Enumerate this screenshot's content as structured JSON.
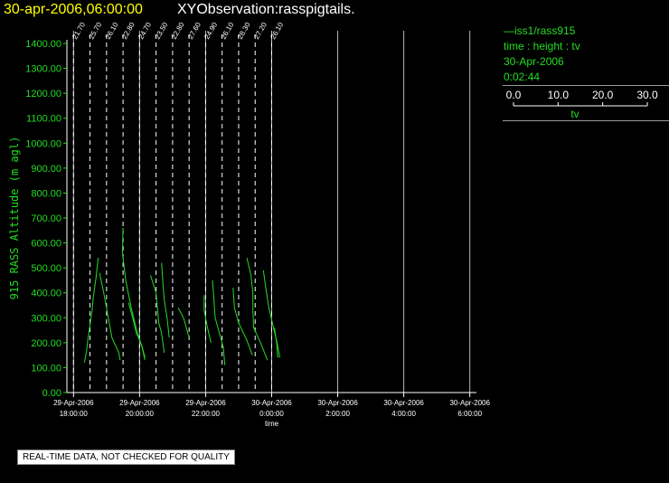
{
  "header": {
    "date_time": "30-apr-2006,06:00:00",
    "title": "XYObservation:rasspigtails."
  },
  "legend": {
    "station": "iss1/rass915",
    "axes": "time : height : tv",
    "date": "30-Apr-2006",
    "time": "0:02:44",
    "scale_ticks": [
      "0.0",
      "10.0",
      "20.0",
      "30.0"
    ],
    "scale_label": "tv"
  },
  "quality_note": "REAL-TIME DATA, NOT CHECKED FOR QUALITY",
  "colors": {
    "trace": "#22dd22",
    "grid": "#ffffff",
    "background": "#000000",
    "title_date": "#ffff00"
  },
  "chart_data": {
    "type": "line",
    "ylabel": "915 RASS Altitude (m agl)",
    "xlabel": "time",
    "ylim": [
      0,
      1400
    ],
    "y_ticks": [
      "0.00",
      "100.00",
      "200.00",
      "300.00",
      "400.00",
      "500.00",
      "600.00",
      "700.00",
      "800.00",
      "900.00",
      "1000.00",
      "1100.00",
      "1200.00",
      "1300.00",
      "1400.00"
    ],
    "xlim": [
      17.8,
      30.2
    ],
    "x_ticks": [
      {
        "t": 18,
        "date": "29-Apr-2006",
        "time": "18:00:00"
      },
      {
        "t": 20,
        "date": "29-Apr-2006",
        "time": "20:00:00"
      },
      {
        "t": 22,
        "date": "29-Apr-2006",
        "time": "22:00:00"
      },
      {
        "t": 24,
        "date": "30-Apr-2006",
        "time": "0:00:00"
      },
      {
        "t": 26,
        "date": "30-Apr-2006",
        "time": "2:00:00"
      },
      {
        "t": 28,
        "date": "30-Apr-2006",
        "time": "4:00:00"
      },
      {
        "t": 30,
        "date": "30-Apr-2006",
        "time": "6:00:00"
      }
    ],
    "pigtail_scale_per_unit_tv": 0.083,
    "profiles": [
      {
        "t": 18.0,
        "label": "21.70",
        "pts": [
          [
            9,
            540
          ],
          [
            8.2,
            460
          ],
          [
            7.2,
            380
          ],
          [
            6.8,
            330
          ],
          [
            6.0,
            270
          ],
          [
            5.2,
            210
          ],
          [
            4.8,
            170
          ],
          [
            4.0,
            120
          ]
        ]
      },
      {
        "t": 18.5,
        "label": "25.70",
        "pts": [
          [
            3.5,
            480
          ],
          [
            5,
            400
          ],
          [
            6,
            340
          ],
          [
            7,
            280
          ],
          [
            8,
            220
          ],
          [
            10.5,
            160
          ],
          [
            11,
            130
          ]
        ]
      },
      {
        "t": 19.0,
        "label": "26.10",
        "pts": [
          [
            6,
            660
          ],
          [
            5.8,
            560
          ],
          [
            7,
            450
          ],
          [
            9,
            340
          ],
          [
            11,
            250
          ],
          [
            13,
            180
          ],
          [
            14,
            130
          ]
        ]
      },
      {
        "t": 19.5,
        "label": "22.80",
        "pts": [
          [
            2,
            360
          ],
          [
            3.5,
            300
          ],
          [
            4.8,
            240
          ],
          [
            6.8,
            190
          ],
          [
            8,
            140
          ]
        ]
      },
      {
        "t": 20.0,
        "label": "24.70",
        "pts": [
          [
            4,
            470
          ],
          [
            6,
            400
          ],
          [
            6.5,
            340
          ],
          [
            7,
            280
          ],
          [
            8,
            240
          ],
          [
            9,
            160
          ]
        ]
      },
      {
        "t": 20.5,
        "label": "23.50",
        "pts": [
          [
            2,
            520
          ],
          [
            2.5,
            440
          ],
          [
            3,
            370
          ],
          [
            4,
            300
          ],
          [
            4.8,
            220
          ]
        ]
      },
      {
        "t": 21.0,
        "label": "22.80",
        "pts": [
          [
            2,
            340
          ],
          [
            4,
            300
          ],
          [
            5,
            260
          ],
          [
            6,
            220
          ]
        ]
      },
      {
        "t": 21.5,
        "label": "27.60",
        "pts": [
          [
            5.5,
            390
          ],
          [
            5.5,
            330
          ],
          [
            6.5,
            270
          ],
          [
            8,
            200
          ]
        ]
      },
      {
        "t": 22.0,
        "label": "24.90",
        "pts": [
          [
            2.5,
            450
          ],
          [
            3,
            380
          ],
          [
            3.5,
            300
          ],
          [
            5,
            240
          ],
          [
            6.5,
            180
          ],
          [
            7,
            110
          ]
        ]
      },
      {
        "t": 22.5,
        "label": "26.10",
        "pts": [
          [
            4,
            420
          ],
          [
            4.5,
            340
          ],
          [
            6,
            280
          ],
          [
            9,
            210
          ],
          [
            11,
            150
          ]
        ]
      },
      {
        "t": 23.0,
        "label": "28.30",
        "pts": [
          [
            3,
            540
          ],
          [
            4.5,
            470
          ],
          [
            5.2,
            400
          ],
          [
            5.2,
            330
          ],
          [
            5.5,
            260
          ],
          [
            8,
            200
          ],
          [
            10.5,
            130
          ]
        ]
      },
      {
        "t": 23.5,
        "label": "27.20",
        "pts": [
          [
            3,
            490
          ],
          [
            4,
            410
          ],
          [
            5,
            340
          ],
          [
            6.5,
            270
          ],
          [
            8,
            200
          ],
          [
            9,
            140
          ]
        ]
      },
      {
        "t": 24.0,
        "label": "26.10",
        "pts": [
          [
            1,
            260
          ],
          [
            1.8,
            200
          ],
          [
            2.2,
            140
          ]
        ]
      }
    ]
  }
}
